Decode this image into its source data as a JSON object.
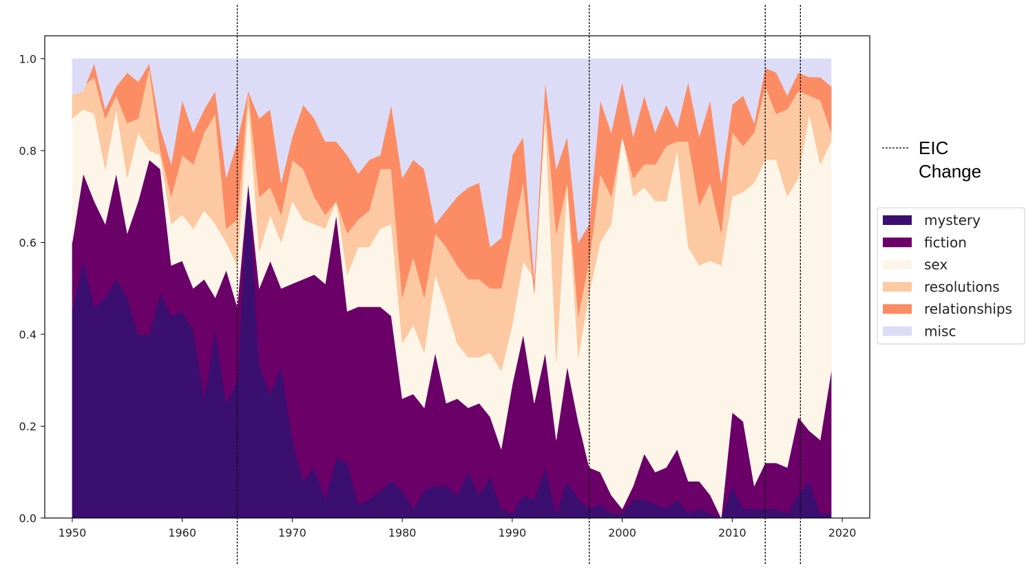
{
  "chart_data": {
    "type": "area",
    "stacked": true,
    "x": [
      1950,
      1951,
      1952,
      1953,
      1954,
      1955,
      1956,
      1957,
      1958,
      1959,
      1960,
      1961,
      1962,
      1963,
      1964,
      1965,
      1966,
      1967,
      1968,
      1969,
      1970,
      1971,
      1972,
      1973,
      1974,
      1975,
      1976,
      1977,
      1978,
      1979,
      1980,
      1981,
      1982,
      1983,
      1984,
      1985,
      1986,
      1987,
      1988,
      1989,
      1990,
      1991,
      1992,
      1993,
      1994,
      1995,
      1996,
      1997,
      1998,
      1999,
      2000,
      2001,
      2002,
      2003,
      2004,
      2005,
      2006,
      2007,
      2008,
      2009,
      2010,
      2011,
      2012,
      2013,
      2014,
      2015,
      2016,
      2017,
      2018,
      2019
    ],
    "series": [
      {
        "name": "mystery",
        "color": "#3b0f70",
        "cumulative": [
          0.45,
          0.56,
          0.46,
          0.48,
          0.52,
          0.48,
          0.4,
          0.4,
          0.49,
          0.44,
          0.45,
          0.41,
          0.26,
          0.41,
          0.25,
          0.3,
          0.73,
          0.33,
          0.27,
          0.33,
          0.17,
          0.08,
          0.11,
          0.04,
          0.13,
          0.12,
          0.03,
          0.04,
          0.06,
          0.08,
          0.06,
          0.02,
          0.06,
          0.07,
          0.07,
          0.05,
          0.1,
          0.05,
          0.09,
          0.02,
          0.01,
          0.05,
          0.04,
          0.11,
          0.01,
          0.08,
          0.04,
          0.02,
          0.03,
          0.01,
          0.01,
          0.04,
          0.04,
          0.03,
          0.02,
          0.04,
          0.01,
          0.02,
          0.01,
          0.0,
          0.07,
          0.02,
          0.02,
          0.02,
          0.02,
          0.01,
          0.05,
          0.08,
          0.01,
          0.01
        ]
      },
      {
        "name": "fiction",
        "color": "#6a0068",
        "cumulative": [
          0.6,
          0.75,
          0.69,
          0.64,
          0.75,
          0.62,
          0.69,
          0.78,
          0.76,
          0.55,
          0.56,
          0.5,
          0.52,
          0.48,
          0.54,
          0.46,
          0.73,
          0.5,
          0.56,
          0.5,
          0.51,
          0.52,
          0.53,
          0.51,
          0.66,
          0.45,
          0.46,
          0.46,
          0.46,
          0.44,
          0.26,
          0.27,
          0.24,
          0.36,
          0.25,
          0.26,
          0.24,
          0.25,
          0.22,
          0.15,
          0.29,
          0.4,
          0.25,
          0.36,
          0.17,
          0.33,
          0.21,
          0.11,
          0.1,
          0.05,
          0.02,
          0.07,
          0.14,
          0.1,
          0.11,
          0.15,
          0.08,
          0.08,
          0.05,
          0.0,
          0.23,
          0.21,
          0.07,
          0.12,
          0.12,
          0.11,
          0.22,
          0.19,
          0.17,
          0.32
        ]
      },
      {
        "name": "sex",
        "color": "#fdf6e8",
        "cumulative": [
          0.87,
          0.89,
          0.88,
          0.76,
          0.89,
          0.74,
          0.84,
          0.8,
          0.79,
          0.64,
          0.66,
          0.63,
          0.67,
          0.64,
          0.6,
          0.55,
          0.9,
          0.58,
          0.66,
          0.6,
          0.69,
          0.65,
          0.64,
          0.63,
          0.69,
          0.53,
          0.59,
          0.59,
          0.63,
          0.64,
          0.38,
          0.42,
          0.36,
          0.53,
          0.46,
          0.38,
          0.35,
          0.35,
          0.36,
          0.32,
          0.42,
          0.56,
          0.52,
          0.87,
          0.34,
          0.73,
          0.35,
          0.49,
          0.6,
          0.64,
          0.84,
          0.7,
          0.72,
          0.69,
          0.69,
          0.8,
          0.59,
          0.55,
          0.56,
          0.55,
          0.7,
          0.71,
          0.73,
          0.78,
          0.78,
          0.7,
          0.74,
          0.88,
          0.77,
          0.82
        ]
      },
      {
        "name": "resolutions",
        "color": "#fdc9a2",
        "cumulative": [
          0.92,
          0.94,
          0.96,
          0.87,
          0.92,
          0.86,
          0.87,
          0.98,
          0.8,
          0.7,
          0.79,
          0.77,
          0.84,
          0.88,
          0.63,
          0.65,
          0.93,
          0.7,
          0.72,
          0.66,
          0.78,
          0.76,
          0.7,
          0.66,
          0.69,
          0.62,
          0.65,
          0.67,
          0.76,
          0.76,
          0.48,
          0.57,
          0.48,
          0.62,
          0.59,
          0.55,
          0.52,
          0.52,
          0.5,
          0.5,
          0.62,
          0.73,
          0.49,
          0.9,
          0.62,
          0.73,
          0.44,
          0.56,
          0.75,
          0.7,
          0.83,
          0.74,
          0.77,
          0.77,
          0.81,
          0.82,
          0.82,
          0.68,
          0.73,
          0.62,
          0.84,
          0.81,
          0.84,
          0.94,
          0.88,
          0.89,
          0.93,
          0.92,
          0.91,
          0.84
        ]
      },
      {
        "name": "relationships",
        "color": "#fc8c64",
        "cumulative": [
          0.92,
          0.93,
          0.99,
          0.89,
          0.94,
          0.97,
          0.95,
          0.99,
          0.85,
          0.77,
          0.91,
          0.84,
          0.89,
          0.93,
          0.74,
          0.82,
          0.93,
          0.87,
          0.89,
          0.73,
          0.83,
          0.9,
          0.87,
          0.82,
          0.82,
          0.79,
          0.75,
          0.78,
          0.79,
          0.9,
          0.74,
          0.78,
          0.76,
          0.64,
          0.67,
          0.7,
          0.72,
          0.73,
          0.59,
          0.61,
          0.79,
          0.83,
          0.52,
          0.95,
          0.76,
          0.83,
          0.6,
          0.64,
          0.91,
          0.84,
          0.95,
          0.83,
          0.92,
          0.84,
          0.9,
          0.85,
          0.95,
          0.83,
          0.91,
          0.73,
          0.9,
          0.92,
          0.86,
          0.98,
          0.97,
          0.92,
          0.97,
          0.96,
          0.96,
          0.94
        ]
      },
      {
        "name": "misc",
        "color": "#dddcf7",
        "cumulative": [
          1.0,
          1.0,
          1.0,
          1.0,
          1.0,
          1.0,
          1.0,
          1.0,
          1.0,
          1.0,
          1.0,
          1.0,
          1.0,
          1.0,
          1.0,
          1.0,
          1.0,
          1.0,
          1.0,
          1.0,
          1.0,
          1.0,
          1.0,
          1.0,
          1.0,
          1.0,
          1.0,
          1.0,
          1.0,
          1.0,
          1.0,
          1.0,
          1.0,
          1.0,
          1.0,
          1.0,
          1.0,
          1.0,
          1.0,
          1.0,
          1.0,
          1.0,
          1.0,
          1.0,
          1.0,
          1.0,
          1.0,
          1.0,
          1.0,
          1.0,
          1.0,
          1.0,
          1.0,
          1.0,
          1.0,
          1.0,
          1.0,
          1.0,
          1.0,
          1.0,
          1.0,
          1.0,
          1.0,
          1.0,
          1.0,
          1.0,
          1.0,
          1.0,
          1.0,
          1.0
        ]
      }
    ],
    "vlines": [
      1965,
      1997,
      2013,
      2016.2
    ],
    "vline_label": "EIC Change",
    "vline_label_lines": [
      "EIC",
      "Change"
    ],
    "xlim": [
      1947.5,
      2022.5
    ],
    "ylim": [
      0,
      1.05
    ],
    "xticks": [
      1950,
      1960,
      1970,
      1980,
      1990,
      2000,
      2010,
      2020
    ],
    "xtick_labels": [
      "1950",
      "1960",
      "1970",
      "1980",
      "1990",
      "2000",
      "2010",
      "2020"
    ],
    "yticks": [
      0.0,
      0.2,
      0.4,
      0.6,
      0.8,
      1.0
    ],
    "ytick_labels": [
      "0.0",
      "0.2",
      "0.4",
      "0.6",
      "0.8",
      "1.0"
    ],
    "title": "",
    "xlabel": "",
    "ylabel": "",
    "grid": false,
    "legend_position": "right"
  }
}
